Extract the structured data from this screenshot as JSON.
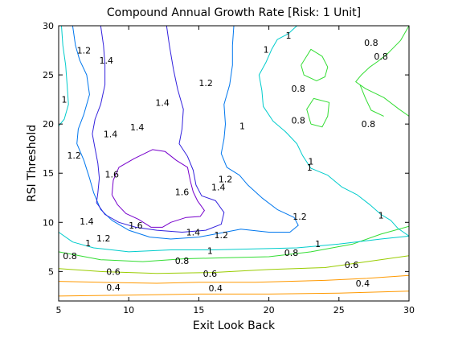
{
  "chart_data": {
    "type": "contour",
    "title": "Compound Annual Growth Rate [Risk: 1 Unit]",
    "xlabel": "Exit Look Back",
    "ylabel": "RSI Threshold",
    "xlim": [
      5,
      30
    ],
    "ylim": [
      2,
      30
    ],
    "xticks": [
      5,
      10,
      15,
      20,
      25,
      30
    ],
    "yticks": [
      5,
      10,
      15,
      20,
      25,
      30
    ],
    "grid": false,
    "legend": "none",
    "levels": [
      {
        "value": 0.4,
        "color": "#ff9900",
        "lines": [
          [
            [
              5,
              2.5
            ],
            [
              10,
              2.6
            ],
            [
              15,
              2.7
            ],
            [
              20,
              2.7
            ],
            [
              25,
              2.8
            ],
            [
              30,
              3.0
            ]
          ],
          [
            [
              5,
              4.0
            ],
            [
              8,
              3.9
            ],
            [
              12,
              3.8
            ],
            [
              15,
              3.9
            ],
            [
              19,
              3.9
            ],
            [
              24,
              4.1
            ],
            [
              27,
              4.3
            ],
            [
              30,
              4.6
            ]
          ]
        ],
        "labels": [
          {
            "text": "0.4",
            "x": 8.9,
            "y": 3.4
          },
          {
            "text": "0.4",
            "x": 16.2,
            "y": 3.3
          },
          {
            "text": "0.4",
            "x": 26.7,
            "y": 3.8
          }
        ]
      },
      {
        "value": 0.6,
        "color": "#99cc00",
        "lines": [
          [
            [
              5,
              5.3
            ],
            [
              8,
              5.0
            ],
            [
              12,
              4.8
            ],
            [
              16,
              4.9
            ],
            [
              20,
              5.2
            ],
            [
              24,
              5.4
            ],
            [
              27,
              6.0
            ],
            [
              30,
              6.6
            ]
          ]
        ],
        "labels": [
          {
            "text": "0.6",
            "x": 8.9,
            "y": 5.0
          },
          {
            "text": "0.6",
            "x": 15.8,
            "y": 4.8
          },
          {
            "text": "0.6",
            "x": 25.9,
            "y": 5.7
          }
        ]
      },
      {
        "value": 0.8,
        "color": "#33dd33",
        "lines": [
          [
            [
              5,
              7.0
            ],
            [
              8,
              6.2
            ],
            [
              11,
              6.0
            ],
            [
              14,
              6.3
            ],
            [
              17,
              6.4
            ],
            [
              20,
              6.5
            ],
            [
              23,
              7.0
            ],
            [
              26,
              7.8
            ],
            [
              28,
              8.8
            ],
            [
              30,
              9.6
            ]
          ],
          [
            [
              26.5,
              24.0
            ],
            [
              26.9,
              22.6
            ],
            [
              27.3,
              21.4
            ],
            [
              28.2,
              20.8
            ]
          ],
          [
            [
              30,
              30.0
            ],
            [
              29.4,
              28.5
            ],
            [
              28.5,
              27.2
            ],
            [
              27.8,
              26.4
            ],
            [
              27.2,
              25.8
            ],
            [
              26.6,
              25.0
            ],
            [
              26.2,
              24.3
            ],
            [
              26.9,
              23.6
            ],
            [
              28.2,
              22.7
            ],
            [
              29.3,
              21.5
            ],
            [
              30,
              20.8
            ]
          ],
          [
            [
              23.0,
              20.0
            ],
            [
              22.7,
              21.5
            ],
            [
              23.2,
              22.6
            ],
            [
              24.3,
              22.2
            ],
            [
              24.2,
              20.8
            ],
            [
              23.8,
              19.7
            ],
            [
              23.0,
              20.0
            ]
          ],
          [
            [
              22.3,
              26.0
            ],
            [
              22.5,
              25.0
            ],
            [
              23.4,
              24.4
            ],
            [
              24.0,
              24.8
            ],
            [
              24.2,
              25.8
            ],
            [
              23.8,
              26.9
            ],
            [
              23.0,
              27.6
            ],
            [
              22.3,
              26.0
            ]
          ]
        ],
        "labels": [
          {
            "text": "0.8",
            "x": 5.8,
            "y": 6.6
          },
          {
            "text": "0.8",
            "x": 13.8,
            "y": 6.1
          },
          {
            "text": "0.8",
            "x": 21.6,
            "y": 6.9
          },
          {
            "text": "0.8",
            "x": 22.1,
            "y": 23.6
          },
          {
            "text": "0.8",
            "x": 22.1,
            "y": 20.4
          },
          {
            "text": "0.8",
            "x": 27.1,
            "y": 20.0
          },
          {
            "text": "0.8",
            "x": 27.3,
            "y": 28.3
          },
          {
            "text": "0.8",
            "x": 28.0,
            "y": 26.9
          }
        ]
      },
      {
        "value": 1.0,
        "color": "#00cccc",
        "lines": [
          [
            [
              5,
              9.0
            ],
            [
              6,
              8.0
            ],
            [
              7.5,
              7.4
            ],
            [
              10,
              7.0
            ],
            [
              13,
              7.2
            ],
            [
              16,
              7.2
            ],
            [
              19,
              7.3
            ],
            [
              22,
              7.4
            ],
            [
              25,
              7.8
            ],
            [
              28,
              8.3
            ],
            [
              30,
              8.6
            ]
          ],
          [
            [
              30,
              8.6
            ],
            [
              29.2,
              9.4
            ],
            [
              28.7,
              10.2
            ],
            [
              28.0,
              10.8
            ],
            [
              27.2,
              11.8
            ],
            [
              26.3,
              12.8
            ],
            [
              25.2,
              13.6
            ],
            [
              24.2,
              14.8
            ],
            [
              23.0,
              15.5
            ],
            [
              22.4,
              16.8
            ],
            [
              22.0,
              18.0
            ],
            [
              21.2,
              19.2
            ],
            [
              20.3,
              20.3
            ],
            [
              19.6,
              21.8
            ],
            [
              19.5,
              23.4
            ],
            [
              19.3,
              25.0
            ],
            [
              19.8,
              26.3
            ],
            [
              20.2,
              27.6
            ],
            [
              20.6,
              28.6
            ],
            [
              21.4,
              29.2
            ],
            [
              22.0,
              30
            ]
          ],
          [
            [
              5.2,
              30
            ],
            [
              5.3,
              28
            ],
            [
              5.5,
              26
            ],
            [
              5.6,
              24
            ],
            [
              5.7,
              22
            ],
            [
              5.4,
              20.5
            ],
            [
              5.0,
              19.8
            ]
          ]
        ],
        "labels": [
          {
            "text": "1",
            "x": 7.1,
            "y": 7.9
          },
          {
            "text": "1",
            "x": 15.8,
            "y": 7.1
          },
          {
            "text": "1",
            "x": 23.5,
            "y": 7.8
          },
          {
            "text": "1",
            "x": 28.0,
            "y": 10.7
          },
          {
            "text": "1",
            "x": 23.0,
            "y": 16.2
          },
          {
            "text": "1",
            "x": 22.9,
            "y": 15.6
          },
          {
            "text": "1",
            "x": 18.1,
            "y": 19.8
          },
          {
            "text": "1",
            "x": 19.8,
            "y": 27.6
          },
          {
            "text": "1",
            "x": 21.4,
            "y": 29.0
          },
          {
            "text": "1",
            "x": 5.4,
            "y": 22.5
          }
        ]
      },
      {
        "value": 1.2,
        "color": "#0077ee",
        "lines": [
          [
            [
              6.0,
              30
            ],
            [
              6.2,
              28
            ],
            [
              6.5,
              26.5
            ],
            [
              7.0,
              25
            ],
            [
              7.2,
              23
            ],
            [
              6.8,
              21
            ],
            [
              6.4,
              19.5
            ],
            [
              6.3,
              18
            ],
            [
              6.8,
              16.3
            ],
            [
              7.2,
              14.5
            ],
            [
              7.5,
              13
            ],
            [
              8.0,
              11.3
            ],
            [
              8.8,
              10.2
            ],
            [
              10,
              9.2
            ],
            [
              11.5,
              8.5
            ],
            [
              13,
              8.3
            ],
            [
              15,
              8.5
            ],
            [
              16.5,
              8.9
            ],
            [
              18,
              9.3
            ],
            [
              20,
              9.0
            ],
            [
              21.5,
              9.0
            ],
            [
              22.1,
              9.7
            ],
            [
              21.8,
              10.5
            ],
            [
              20.6,
              11.3
            ],
            [
              19.5,
              12.5
            ],
            [
              18.5,
              13.8
            ],
            [
              17.9,
              14.8
            ],
            [
              17.0,
              15.6
            ],
            [
              16.6,
              17.0
            ],
            [
              16.8,
              18.5
            ],
            [
              16.9,
              20.0
            ],
            [
              16.8,
              22.0
            ],
            [
              17.2,
              24.0
            ],
            [
              17.4,
              26.0
            ],
            [
              17.4,
              28.0
            ],
            [
              17.5,
              30
            ]
          ]
        ],
        "labels": [
          {
            "text": "1.2",
            "x": 6.8,
            "y": 27.5
          },
          {
            "text": "1.2",
            "x": 15.5,
            "y": 24.2
          },
          {
            "text": "1.2",
            "x": 16.9,
            "y": 14.4
          },
          {
            "text": "1.2",
            "x": 6.1,
            "y": 16.8
          },
          {
            "text": "1.2",
            "x": 8.2,
            "y": 8.4
          },
          {
            "text": "1.2",
            "x": 16.6,
            "y": 8.7
          },
          {
            "text": "1.2",
            "x": 22.2,
            "y": 10.6
          }
        ]
      },
      {
        "value": 1.4,
        "color": "#3322dd",
        "lines": [
          [
            [
              8.0,
              30
            ],
            [
              8.2,
              28
            ],
            [
              8.3,
              26
            ],
            [
              8.3,
              24
            ],
            [
              8.0,
              22
            ],
            [
              7.6,
              20.5
            ],
            [
              7.4,
              19
            ],
            [
              7.6,
              17.5
            ],
            [
              7.8,
              16
            ],
            [
              7.9,
              14.5
            ],
            [
              7.8,
              13
            ],
            [
              7.7,
              12
            ],
            [
              8.3,
              10.8
            ],
            [
              9.3,
              10.0
            ],
            [
              10.5,
              9.5
            ],
            [
              12,
              9.2
            ],
            [
              13.8,
              9.0
            ],
            [
              15.5,
              9.2
            ],
            [
              16.6,
              9.8
            ],
            [
              16.8,
              11
            ],
            [
              16.2,
              12.2
            ],
            [
              15.2,
              12.7
            ],
            [
              14.8,
              13.8
            ],
            [
              14.6,
              15.3
            ],
            [
              14.2,
              16.7
            ],
            [
              13.6,
              18
            ],
            [
              13.8,
              19.5
            ],
            [
              13.9,
              21.5
            ],
            [
              13.5,
              23.5
            ],
            [
              13.2,
              25.5
            ],
            [
              12.9,
              28
            ],
            [
              12.7,
              30
            ]
          ]
        ],
        "labels": [
          {
            "text": "1.4",
            "x": 8.4,
            "y": 26.5
          },
          {
            "text": "1.4",
            "x": 12.4,
            "y": 22.2
          },
          {
            "text": "1.4",
            "x": 10.6,
            "y": 19.7
          },
          {
            "text": "1.4",
            "x": 8.7,
            "y": 19.0
          },
          {
            "text": "1.4",
            "x": 16.4,
            "y": 13.6
          },
          {
            "text": "1.4",
            "x": 7.0,
            "y": 10.1
          },
          {
            "text": "1.4",
            "x": 14.6,
            "y": 9.0
          }
        ]
      },
      {
        "value": 1.6,
        "color": "#7700cc",
        "lines": [
          [
            [
              8.8,
              12.8
            ],
            [
              8.9,
              14.3
            ],
            [
              9.3,
              15.6
            ],
            [
              10.4,
              16.5
            ],
            [
              11.7,
              17.4
            ],
            [
              12.6,
              17.2
            ],
            [
              13.4,
              16.3
            ],
            [
              14.2,
              15.6
            ],
            [
              14.4,
              14.2
            ],
            [
              14.6,
              13.1
            ],
            [
              14.9,
              12.2
            ],
            [
              15.4,
              11.2
            ],
            [
              15.1,
              10.6
            ],
            [
              14.1,
              10.5
            ],
            [
              13.0,
              10.0
            ],
            [
              12.4,
              9.5
            ],
            [
              11.6,
              9.5
            ],
            [
              10.7,
              10.3
            ],
            [
              9.8,
              10.9
            ],
            [
              9.2,
              11.8
            ],
            [
              8.8,
              12.8
            ]
          ]
        ],
        "labels": [
          {
            "text": "1.6",
            "x": 8.8,
            "y": 14.9
          },
          {
            "text": "1.6",
            "x": 13.8,
            "y": 13.1
          },
          {
            "text": "1.6",
            "x": 10.5,
            "y": 9.7
          }
        ]
      }
    ]
  }
}
